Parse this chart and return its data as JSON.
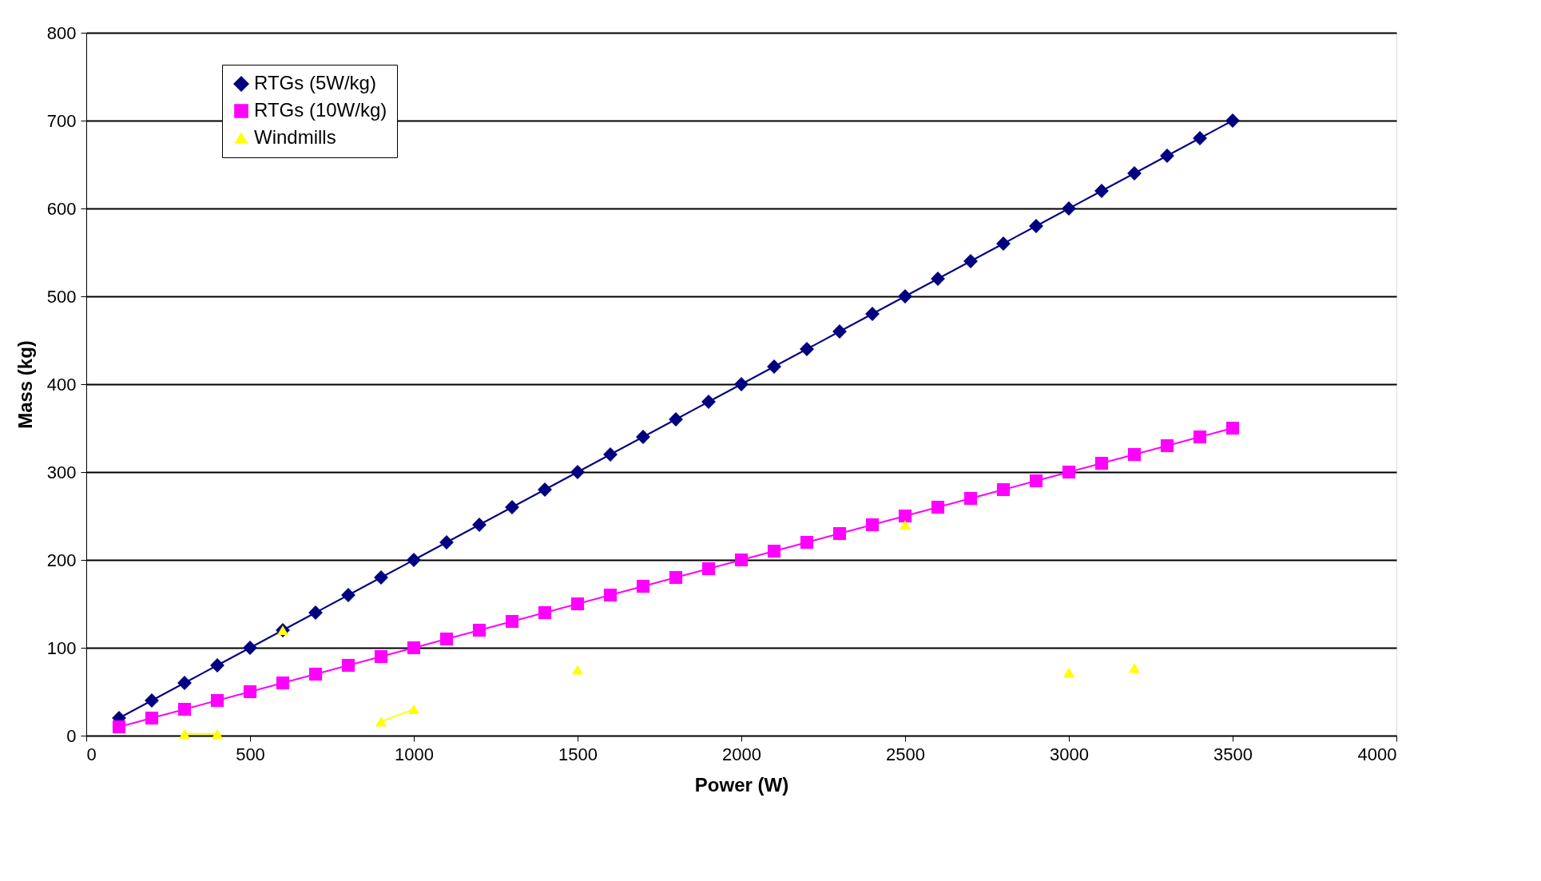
{
  "chart_data": {
    "type": "line",
    "xlabel": "Power (W)",
    "ylabel": "Mass (kg)",
    "xlim": [
      0,
      4000
    ],
    "xticks": [
      0,
      500,
      1000,
      1500,
      2000,
      2500,
      3000,
      3500,
      4000
    ],
    "ylim": [
      0,
      800
    ],
    "yticks": [
      0,
      100,
      200,
      300,
      400,
      500,
      600,
      700,
      800
    ],
    "grid": "y",
    "legend": "top left",
    "line_style": "solid",
    "series": [
      {
        "name": "RTGs (5W/kg)",
        "color": "#000080",
        "marker": "diamond",
        "x": [
          100,
          200,
          300,
          400,
          500,
          600,
          700,
          800,
          900,
          1000,
          1100,
          1200,
          1300,
          1400,
          1500,
          1600,
          1700,
          1800,
          1900,
          2000,
          2100,
          2200,
          2300,
          2400,
          2500,
          2600,
          2700,
          2800,
          2900,
          3000,
          3100,
          3200,
          3300,
          3400,
          3500
        ],
        "values": [
          20,
          40,
          60,
          80,
          100,
          120,
          140,
          160,
          180,
          200,
          220,
          240,
          260,
          280,
          300,
          320,
          340,
          360,
          380,
          400,
          420,
          440,
          460,
          480,
          500,
          520,
          540,
          560,
          580,
          600,
          620,
          640,
          660,
          680,
          700
        ]
      },
      {
        "name": "RTGs (10W/kg)",
        "color": "#ff00ff",
        "marker": "square",
        "x": [
          100,
          200,
          300,
          400,
          500,
          600,
          700,
          800,
          900,
          1000,
          1100,
          1200,
          1300,
          1400,
          1500,
          1600,
          1700,
          1800,
          1900,
          2000,
          2100,
          2200,
          2300,
          2400,
          2500,
          2600,
          2700,
          2800,
          2900,
          3000,
          3100,
          3200,
          3300,
          3400,
          3500
        ],
        "values": [
          10,
          20,
          30,
          40,
          50,
          60,
          70,
          80,
          90,
          100,
          110,
          120,
          130,
          140,
          150,
          160,
          170,
          180,
          190,
          200,
          210,
          220,
          230,
          240,
          250,
          260,
          270,
          280,
          290,
          300,
          310,
          320,
          330,
          340,
          350
        ]
      },
      {
        "name": "Windmills",
        "color": "#ffff00",
        "marker": "triangle",
        "x": [
          300,
          400,
          500,
          600,
          700,
          900,
          1000,
          1100,
          1500,
          2000,
          2500,
          2800,
          3000,
          3100,
          3200
        ],
        "values": [
          2,
          2,
          null,
          120,
          null,
          16,
          30,
          null,
          75,
          null,
          240,
          null,
          72,
          null,
          77
        ]
      }
    ]
  }
}
